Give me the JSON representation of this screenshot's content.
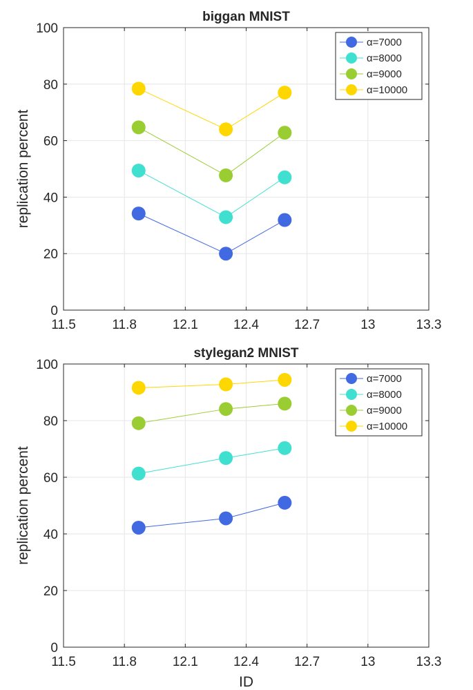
{
  "chart_data": [
    {
      "type": "line",
      "title": "biggan MNIST",
      "xlabel": "",
      "ylabel": "replication percent",
      "xlim": [
        11.5,
        13.3
      ],
      "ylim": [
        0,
        100
      ],
      "xticks": [
        "11.5",
        "11.8",
        "12.1",
        "12.4",
        "12.7",
        "13",
        "13.3"
      ],
      "yticks": [
        "0",
        "20",
        "40",
        "60",
        "80",
        "100"
      ],
      "grid": true,
      "legend_position": "top-right",
      "x": [
        11.87,
        12.3,
        12.59
      ],
      "series": [
        {
          "name": "α=7000",
          "color": "#4169E1",
          "values": [
            34.2,
            20.0,
            31.9
          ]
        },
        {
          "name": "α=8000",
          "color": "#40E0D0",
          "values": [
            49.4,
            32.9,
            47.0
          ]
        },
        {
          "name": "α=9000",
          "color": "#9ACD32",
          "values": [
            64.7,
            47.7,
            62.8
          ]
        },
        {
          "name": "α=10000",
          "color": "#FFD700",
          "values": [
            78.4,
            64.0,
            77.0
          ]
        }
      ]
    },
    {
      "type": "line",
      "title": "stylegan2 MNIST",
      "xlabel": "ID",
      "ylabel": "replication percent",
      "xlim": [
        11.5,
        13.3
      ],
      "ylim": [
        0,
        100
      ],
      "xticks": [
        "11.5",
        "11.8",
        "12.1",
        "12.4",
        "12.7",
        "13",
        "13.3"
      ],
      "yticks": [
        "0",
        "20",
        "40",
        "60",
        "80",
        "100"
      ],
      "grid": true,
      "legend_position": "top-right",
      "x": [
        11.87,
        12.3,
        12.59
      ],
      "series": [
        {
          "name": "α=7000",
          "color": "#4169E1",
          "values": [
            42.2,
            45.5,
            51.0
          ]
        },
        {
          "name": "α=8000",
          "color": "#40E0D0",
          "values": [
            61.3,
            66.8,
            70.3
          ]
        },
        {
          "name": "α=9000",
          "color": "#9ACD32",
          "values": [
            79.1,
            84.1,
            86.0
          ]
        },
        {
          "name": "α=10000",
          "color": "#FFD700",
          "values": [
            91.6,
            92.8,
            94.4
          ]
        }
      ]
    }
  ]
}
